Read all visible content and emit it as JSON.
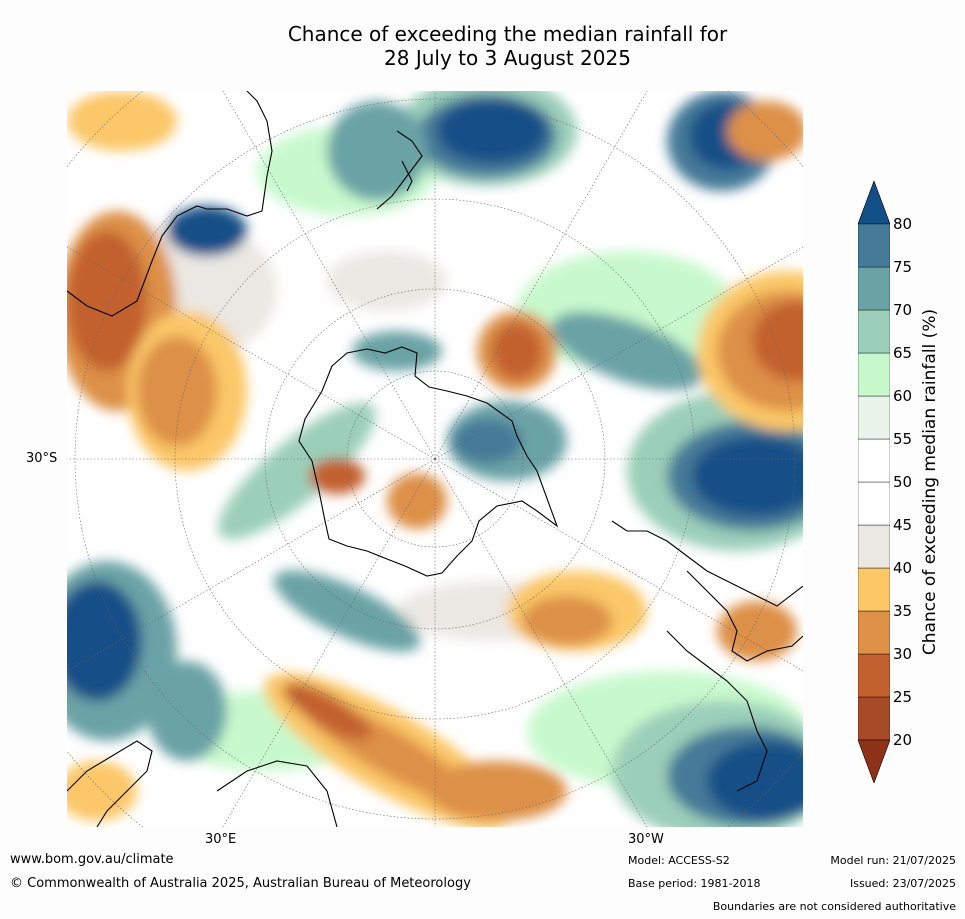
{
  "title": {
    "line1": "Chance of exceeding the median rainfall for",
    "line2": "28 July to 3 August 2025"
  },
  "map": {
    "lat_label": "30°S",
    "lon_labels": {
      "east": "30°E",
      "west": "30°W"
    }
  },
  "colorbar": {
    "label": "Chance of exceeding median rainfall (%)",
    "ticks": [
      "20",
      "25",
      "30",
      "35",
      "40",
      "45",
      "50",
      "55",
      "60",
      "65",
      "70",
      "75",
      "80"
    ],
    "bins": [
      {
        "from": 0,
        "to": 20,
        "color": "#8e3318"
      },
      {
        "from": 20,
        "to": 25,
        "color": "#a64a28"
      },
      {
        "from": 25,
        "to": 30,
        "color": "#c2602e"
      },
      {
        "from": 30,
        "to": 35,
        "color": "#dd9046"
      },
      {
        "from": 35,
        "to": 40,
        "color": "#fbc767"
      },
      {
        "from": 40,
        "to": 45,
        "color": "#ebe8e3"
      },
      {
        "from": 45,
        "to": 50,
        "color": "#ffffff"
      },
      {
        "from": 50,
        "to": 55,
        "color": "#ffffff"
      },
      {
        "from": 55,
        "to": 60,
        "color": "#e9f5ea"
      },
      {
        "from": 60,
        "to": 65,
        "color": "#c8f9cd"
      },
      {
        "from": 65,
        "to": 70,
        "color": "#9bcfb9"
      },
      {
        "from": 70,
        "to": 75,
        "color": "#6aa3a6"
      },
      {
        "from": 75,
        "to": 80,
        "color": "#457a98"
      },
      {
        "from": 80,
        "to": 100,
        "color": "#134f87"
      }
    ]
  },
  "footer": {
    "url": "www.bom.gov.au/climate",
    "copyright": "© Commonwealth of Australia 2025, Australian Bureau of Meteorology",
    "model": "Model: ACCESS-S2",
    "base_period": "Base period: 1981-2018",
    "model_run": "Model run: 21/07/2025",
    "issued": "Issued: 23/07/2025",
    "disclaimer": "Boundaries are not considered authoritative"
  }
}
